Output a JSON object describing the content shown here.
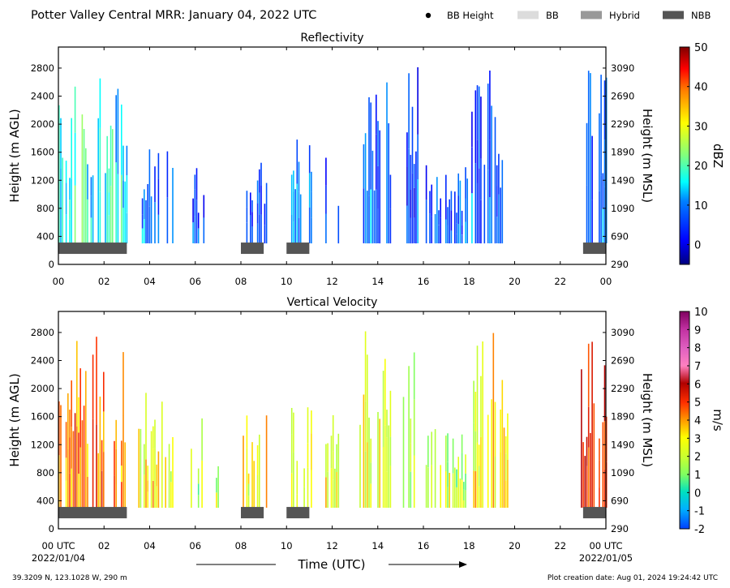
{
  "header": {
    "title": "Potter Valley Central MRR:  January 04, 2022 UTC",
    "legend": [
      {
        "label": "BB Height",
        "marker": "dot",
        "color": "#000000"
      },
      {
        "label": "BB",
        "marker": "box",
        "color": "#dcdcdc"
      },
      {
        "label": "Hybrid",
        "marker": "box",
        "color": "#999999"
      },
      {
        "label": "NBB",
        "marker": "box",
        "color": "#555555"
      }
    ]
  },
  "footer": {
    "location": "39.3209 N, 123.1028 W, 290 m",
    "created": "Plot creation date: Aug 01, 2024 19:24:42 UTC",
    "time_label": "Time (UTC)",
    "start_date": "2022/01/04",
    "end_date": "2022/01/05"
  },
  "chart_data": [
    {
      "type": "heatmap",
      "title": "Reflectivity",
      "xlabel": "",
      "ylabel": "Height (m AGL)",
      "y2label": "Height (m MSL)",
      "xlim": [
        0,
        24
      ],
      "ylim": [
        0,
        3100
      ],
      "xticks": [
        "00",
        "02",
        "04",
        "06",
        "08",
        "10",
        "12",
        "14",
        "16",
        "18",
        "20",
        "22",
        "00"
      ],
      "yticks": [
        0,
        400,
        800,
        1200,
        1600,
        2000,
        2400,
        2800
      ],
      "y2ticks": [
        "290",
        "690",
        "1090",
        "1490",
        "1890",
        "2290",
        "2690",
        "3090"
      ],
      "colorbar": {
        "label": "dBZ",
        "min": -5,
        "max": 50,
        "ticks": [
          0,
          10,
          20,
          30,
          40,
          50
        ]
      },
      "nbb_segments": [
        [
          0,
          3
        ],
        [
          8,
          9
        ],
        [
          10,
          11
        ],
        [
          23,
          24
        ]
      ],
      "echo_columns": [
        {
          "start": 0.0,
          "end": 3.0,
          "top": 3000,
          "value": 15
        },
        {
          "start": 3.5,
          "end": 5.0,
          "top": 2000,
          "value": 8
        },
        {
          "start": 5.8,
          "end": 6.4,
          "top": 1600,
          "value": 5
        },
        {
          "start": 6.9,
          "end": 7.0,
          "top": 1100,
          "value": 3
        },
        {
          "start": 8.0,
          "end": 9.1,
          "top": 1800,
          "value": 6
        },
        {
          "start": 10.2,
          "end": 11.1,
          "top": 1800,
          "value": 9
        },
        {
          "start": 11.7,
          "end": 12.3,
          "top": 1700,
          "value": 5
        },
        {
          "start": 13.2,
          "end": 14.6,
          "top": 3000,
          "value": 6
        },
        {
          "start": 15.1,
          "end": 15.8,
          "top": 3000,
          "value": 4
        },
        {
          "start": 16.1,
          "end": 17.9,
          "top": 1500,
          "value": 5
        },
        {
          "start": 18.1,
          "end": 19.8,
          "top": 3000,
          "value": 5
        },
        {
          "start": 22.9,
          "end": 24.0,
          "top": 2900,
          "value": 7
        }
      ]
    },
    {
      "type": "heatmap",
      "title": "Vertical Velocity",
      "xlabel": "Time (UTC)",
      "ylabel": "Height (m AGL)",
      "y2label": "Height (m MSL)",
      "xlim": [
        0,
        24
      ],
      "ylim": [
        0,
        3100
      ],
      "xticks": [
        "00 UTC",
        "02",
        "04",
        "06",
        "08",
        "10",
        "12",
        "14",
        "16",
        "18",
        "20",
        "22",
        "00 UTC"
      ],
      "yticks": [
        0,
        400,
        800,
        1200,
        1600,
        2000,
        2400,
        2800
      ],
      "y2ticks": [
        "290",
        "690",
        "1090",
        "1490",
        "1890",
        "2290",
        "2690",
        "3090"
      ],
      "colorbar": {
        "label": "m/s",
        "min": -2,
        "max": 10,
        "ticks": [
          -2,
          -1,
          0,
          1,
          2,
          3,
          4,
          5,
          6,
          7,
          8,
          9,
          10
        ]
      },
      "nbb_segments": [
        [
          0,
          3
        ],
        [
          8,
          9
        ],
        [
          10,
          11
        ],
        [
          23,
          24
        ]
      ],
      "echo_columns": [
        {
          "start": 0.0,
          "end": 3.0,
          "top": 3000,
          "value": 4
        },
        {
          "start": 3.5,
          "end": 5.0,
          "top": 2000,
          "value": 2.5
        },
        {
          "start": 5.8,
          "end": 6.4,
          "top": 1600,
          "value": 1.5
        },
        {
          "start": 6.9,
          "end": 7.0,
          "top": 1100,
          "value": 1.5
        },
        {
          "start": 8.0,
          "end": 9.1,
          "top": 1800,
          "value": 2.5
        },
        {
          "start": 10.2,
          "end": 11.1,
          "top": 1800,
          "value": 2.5
        },
        {
          "start": 11.7,
          "end": 12.3,
          "top": 1700,
          "value": 2
        },
        {
          "start": 13.2,
          "end": 14.6,
          "top": 3000,
          "value": 2
        },
        {
          "start": 15.1,
          "end": 15.8,
          "top": 3000,
          "value": 1.5
        },
        {
          "start": 16.1,
          "end": 17.9,
          "top": 1500,
          "value": 1.5
        },
        {
          "start": 18.1,
          "end": 19.8,
          "top": 3000,
          "value": 2.5
        },
        {
          "start": 22.9,
          "end": 24.0,
          "top": 2900,
          "value": 5
        }
      ]
    }
  ]
}
